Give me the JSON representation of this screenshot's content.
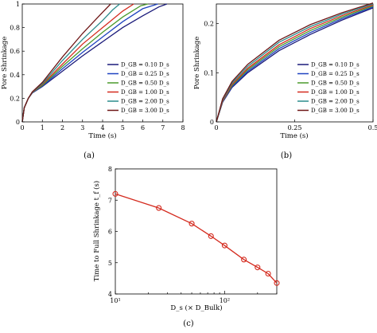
{
  "chart_data": [
    {
      "panel": "a",
      "caption": "(a)",
      "type": "line",
      "xlabel": "Time (s)",
      "ylabel": "Pore Shrinkage",
      "xlim": [
        0,
        8
      ],
      "ylim": [
        0,
        1
      ],
      "xticks": [
        "0",
        "1",
        "2",
        "3",
        "4",
        "5",
        "6",
        "7",
        "8"
      ],
      "yticks": [
        "0",
        "0.2",
        "0.4",
        "0.6",
        "0.8",
        "1"
      ],
      "legend_position": "lower-right",
      "series": [
        {
          "name": "D_GB = 0.10 D_s",
          "color": "#1a1a7a",
          "x": [
            0,
            0.1,
            0.3,
            0.5,
            1.0,
            2.0,
            3.0,
            4.0,
            5.0,
            6.0,
            6.8,
            7.2
          ],
          "y": [
            0,
            0.12,
            0.2,
            0.245,
            0.3,
            0.43,
            0.56,
            0.68,
            0.8,
            0.9,
            0.975,
            1.0
          ]
        },
        {
          "name": "D_GB = 0.25 D_s",
          "color": "#1f43c0",
          "x": [
            0,
            0.1,
            0.3,
            0.5,
            1.0,
            2.0,
            3.0,
            4.0,
            5.0,
            6.0,
            6.75
          ],
          "y": [
            0,
            0.12,
            0.2,
            0.247,
            0.305,
            0.45,
            0.59,
            0.72,
            0.85,
            0.96,
            1.0
          ]
        },
        {
          "name": "D_GB = 0.50 D_s",
          "color": "#4a9a2c",
          "x": [
            0,
            0.1,
            0.3,
            0.5,
            1.0,
            2.0,
            3.0,
            4.0,
            5.0,
            5.9,
            6.25
          ],
          "y": [
            0,
            0.12,
            0.2,
            0.249,
            0.31,
            0.47,
            0.62,
            0.76,
            0.89,
            0.985,
            1.0
          ]
        },
        {
          "name": "D_GB = 1.00 D_s",
          "color": "#d42a1e",
          "x": [
            0,
            0.1,
            0.3,
            0.5,
            1.0,
            2.0,
            3.0,
            4.0,
            5.0,
            5.55
          ],
          "y": [
            0,
            0.12,
            0.2,
            0.251,
            0.318,
            0.49,
            0.66,
            0.8,
            0.94,
            1.0
          ]
        },
        {
          "name": "D_GB = 2.00 D_s",
          "color": "#2b8c8c",
          "x": [
            0,
            0.1,
            0.3,
            0.5,
            1.0,
            2.0,
            3.0,
            4.0,
            4.5,
            4.85
          ],
          "y": [
            0,
            0.12,
            0.2,
            0.253,
            0.325,
            0.52,
            0.7,
            0.86,
            0.95,
            1.0
          ]
        },
        {
          "name": "D_GB = 3.00 D_s",
          "color": "#6e1616",
          "x": [
            0,
            0.1,
            0.3,
            0.5,
            1.0,
            2.0,
            3.0,
            3.5,
            4.0,
            4.4
          ],
          "y": [
            0,
            0.12,
            0.2,
            0.255,
            0.335,
            0.55,
            0.75,
            0.84,
            0.93,
            1.0
          ]
        }
      ]
    },
    {
      "panel": "b",
      "caption": "(b)",
      "type": "line",
      "xlabel": "Time (s)",
      "ylabel": "Pore Shrinkage",
      "xlim": [
        0,
        0.5
      ],
      "ylim": [
        0,
        0.24
      ],
      "xticks": [
        "0",
        "0.25",
        "0.5"
      ],
      "yticks": [
        "0",
        "0.1",
        "0.2"
      ],
      "legend_position": "lower-right",
      "series": [
        {
          "name": "D_GB = 0.10 D_s",
          "color": "#1a1a7a",
          "x": [
            0,
            0.02,
            0.05,
            0.1,
            0.2,
            0.3,
            0.4,
            0.5
          ],
          "y": [
            0,
            0.04,
            0.07,
            0.1,
            0.145,
            0.178,
            0.207,
            0.232
          ]
        },
        {
          "name": "D_GB = 0.25 D_s",
          "color": "#1f43c0",
          "x": [
            0,
            0.02,
            0.05,
            0.1,
            0.2,
            0.3,
            0.4,
            0.5
          ],
          "y": [
            0,
            0.041,
            0.072,
            0.103,
            0.149,
            0.182,
            0.21,
            0.234
          ]
        },
        {
          "name": "D_GB = 0.50 D_s",
          "color": "#4a9a2c",
          "x": [
            0,
            0.02,
            0.05,
            0.1,
            0.2,
            0.3,
            0.4,
            0.5
          ],
          "y": [
            0,
            0.042,
            0.074,
            0.106,
            0.153,
            0.186,
            0.213,
            0.236
          ]
        },
        {
          "name": "D_GB = 1.00 D_s",
          "color": "#d42a1e",
          "x": [
            0,
            0.02,
            0.05,
            0.1,
            0.2,
            0.3,
            0.4,
            0.5
          ],
          "y": [
            0,
            0.043,
            0.076,
            0.109,
            0.157,
            0.19,
            0.216,
            0.238
          ]
        },
        {
          "name": "D_GB = 2.00 D_s",
          "color": "#2b8c8c",
          "x": [
            0,
            0.02,
            0.05,
            0.1,
            0.2,
            0.3,
            0.4,
            0.5
          ],
          "y": [
            0,
            0.045,
            0.079,
            0.113,
            0.162,
            0.194,
            0.219,
            0.24
          ]
        },
        {
          "name": "D_GB = 3.00 D_s",
          "color": "#6e1616",
          "x": [
            0,
            0.02,
            0.05,
            0.1,
            0.2,
            0.3,
            0.4,
            0.5
          ],
          "y": [
            0,
            0.047,
            0.082,
            0.117,
            0.166,
            0.198,
            0.222,
            0.242
          ]
        }
      ]
    },
    {
      "panel": "c",
      "caption": "(c)",
      "type": "line",
      "xlabel": "D_s (× D_Bulk)",
      "ylabel": "Time to Full Shrinkage t_f (s)",
      "xscale": "log",
      "xlim": [
        10,
        300
      ],
      "ylim": [
        4,
        8
      ],
      "xticks": [
        "10¹",
        "10²"
      ],
      "yticks": [
        "4",
        "5",
        "6",
        "7",
        "8"
      ],
      "marker": "circle",
      "color": "#d42a1e",
      "series": [
        {
          "name": "",
          "x": [
            10,
            25,
            50,
            75,
            100,
            150,
            200,
            250,
            300
          ],
          "y": [
            7.2,
            6.75,
            6.25,
            5.85,
            5.55,
            5.1,
            4.85,
            4.65,
            4.35
          ]
        }
      ]
    }
  ]
}
